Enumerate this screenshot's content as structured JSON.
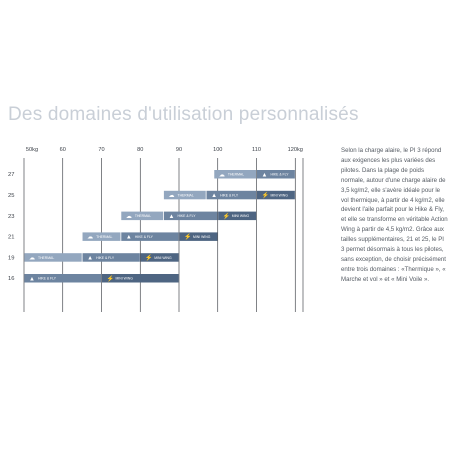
{
  "title": "Des domaines d'utilisation personnalisés",
  "description": "Selon la charge alaire, le PI 3 répond aux exigences les plus variées des pilotes. Dans la plage de poids normale, autour d'une charge alaire de 3,5 kg/m2, elle s'avère idéale pour le vol thermique, à partir de 4 kg/m2, elle devient l'aile parfait pour le Hike & Fly, et elle se transforme en véritable Action Wing à partir de 4,5 kg/m2. Grâce aux tailles supplémentaires, 21 et 25, le PI 3 permet désormais à tous les pilotes, sans exception, de choisir précisément entre trois domaines : «Thermique », « Marche et vol » et « Mini Voile ».",
  "colors": {
    "thermal": "#93a7bf",
    "hike_fly": "#6d84a0",
    "mini_wing": "#4e6582",
    "grid": "#2b2f36",
    "title": "#c9cfd7"
  },
  "chart_data": {
    "type": "bar",
    "orientation": "horizontal-ranges",
    "x_ticks": [
      "50kg",
      "60",
      "70",
      "80",
      "90",
      "100",
      "110",
      "120kg"
    ],
    "xlim": [
      50,
      122
    ],
    "sizes": [
      {
        "size": "27",
        "segments": [
          {
            "mode": "thermal",
            "label": "THERMAL",
            "from": 99,
            "to": 110
          },
          {
            "mode": "hike_fly",
            "label": "HIKE & FLY",
            "from": 110,
            "to": 120
          }
        ]
      },
      {
        "size": "25",
        "segments": [
          {
            "mode": "thermal",
            "label": "THERMAL",
            "from": 86,
            "to": 97
          },
          {
            "mode": "hike_fly",
            "label": "HIKE & FLY",
            "from": 97,
            "to": 110
          },
          {
            "mode": "mini_wing",
            "label": "MINI WING",
            "from": 110,
            "to": 120
          }
        ]
      },
      {
        "size": "23",
        "segments": [
          {
            "mode": "thermal",
            "label": "THERMAL",
            "from": 75,
            "to": 86
          },
          {
            "mode": "hike_fly",
            "label": "HIKE & FLY",
            "from": 86,
            "to": 100
          },
          {
            "mode": "mini_wing",
            "label": "MINI WING",
            "from": 100,
            "to": 110
          }
        ]
      },
      {
        "size": "21",
        "segments": [
          {
            "mode": "thermal",
            "label": "THERMAL",
            "from": 65,
            "to": 75
          },
          {
            "mode": "hike_fly",
            "label": "HIKE & FLY",
            "from": 75,
            "to": 90
          },
          {
            "mode": "mini_wing",
            "label": "MINI WING",
            "from": 90,
            "to": 100
          }
        ]
      },
      {
        "size": "19",
        "segments": [
          {
            "mode": "thermal",
            "label": "THERMAL",
            "from": 50,
            "to": 65
          },
          {
            "mode": "hike_fly",
            "label": "HIKE & FLY",
            "from": 65,
            "to": 80
          },
          {
            "mode": "mini_wing",
            "label": "MINI WING",
            "from": 80,
            "to": 90
          }
        ]
      },
      {
        "size": "16",
        "segments": [
          {
            "mode": "hike_fly",
            "label": "HIKE & FLY",
            "from": 50,
            "to": 70
          },
          {
            "mode": "mini_wing",
            "label": "MINI WING",
            "from": 70,
            "to": 90
          }
        ]
      }
    ]
  }
}
